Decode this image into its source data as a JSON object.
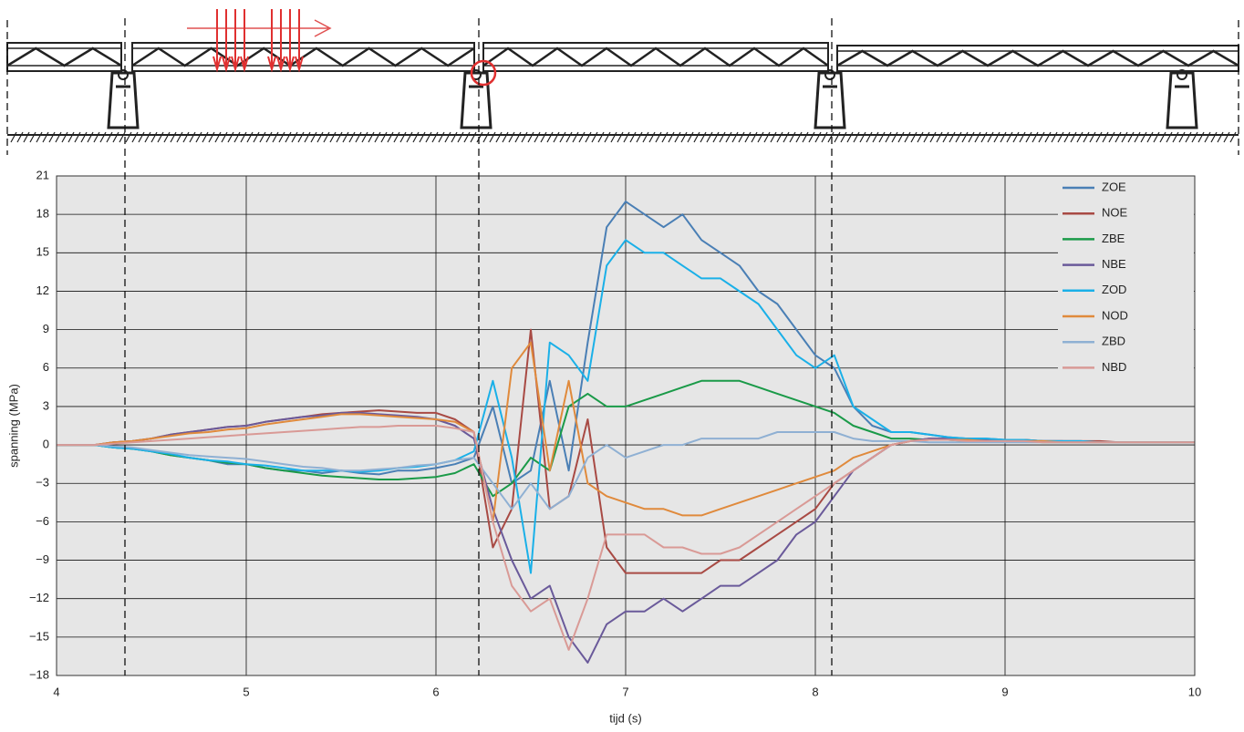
{
  "chart_data": {
    "type": "line",
    "x_label": "tijd (s)",
    "y_label": "spanning (MPa)",
    "x": [
      4,
      4.1,
      4.2,
      4.3,
      4.4,
      4.5,
      4.6,
      4.7,
      4.8,
      4.9,
      5,
      5.1,
      5.2,
      5.3,
      5.4,
      5.5,
      5.6,
      5.7,
      5.8,
      5.9,
      6,
      6.1,
      6.2,
      6.3,
      6.4,
      6.5,
      6.6,
      6.7,
      6.8,
      6.9,
      7,
      7.1,
      7.2,
      7.3,
      7.4,
      7.5,
      7.6,
      7.7,
      7.8,
      7.9,
      8,
      8.1,
      8.2,
      8.3,
      8.4,
      8.5,
      8.6,
      8.7,
      8.8,
      8.9,
      9,
      9.1,
      9.2,
      9.3,
      9.4,
      9.5,
      9.6,
      9.7,
      9.8,
      9.9,
      10
    ],
    "xlim": [
      4,
      10
    ],
    "xticks": [
      4,
      5,
      6,
      7,
      8,
      9,
      10
    ],
    "ylim": [
      -18,
      21
    ],
    "yticks": [
      {
        "value": -18,
        "label": "−18"
      },
      {
        "value": -15,
        "label": "−15"
      },
      {
        "value": -12,
        "label": "−12"
      },
      {
        "value": -9,
        "label": "−9"
      },
      {
        "value": -6,
        "label": "−6"
      },
      {
        "value": -3,
        "label": "−3"
      },
      0,
      3,
      6,
      9,
      12,
      15,
      18,
      21
    ],
    "grid": true,
    "legend": "upper right",
    "series": [
      {
        "name": "ZOE",
        "color": "#4a7fb5",
        "values": [
          0,
          0,
          0,
          -0.2,
          -0.3,
          -0.5,
          -0.8,
          -1,
          -1.2,
          -1.5,
          -1.5,
          -1.8,
          -2,
          -2,
          -2.2,
          -2,
          -2.2,
          -2.3,
          -2,
          -2,
          -1.8,
          -1.5,
          -1,
          3,
          -3,
          -2,
          5,
          -2,
          8,
          17,
          19,
          18,
          17,
          18,
          16,
          15,
          14,
          12,
          11,
          9,
          7,
          6,
          3,
          1.5,
          1,
          1,
          0.8,
          0.6,
          0.5,
          0.5,
          0.4,
          0.4,
          0.3,
          0.3,
          0.3,
          0.2,
          0.2,
          0.2,
          0.2,
          0.2,
          0.2
        ]
      },
      {
        "name": "NOE",
        "color": "#a84a44",
        "values": [
          0,
          0,
          0,
          0.2,
          0.3,
          0.5,
          0.8,
          1,
          1.2,
          1.4,
          1.5,
          1.8,
          2,
          2.2,
          2.4,
          2.5,
          2.6,
          2.7,
          2.6,
          2.5,
          2.5,
          2,
          1,
          -8,
          -5,
          9,
          -5,
          -4,
          2,
          -8,
          -10,
          -10,
          -10,
          -10,
          -10,
          -9,
          -9,
          -8,
          -7,
          -6,
          -5,
          -3,
          -2,
          -1,
          0,
          0.3,
          0.5,
          0.5,
          0.5,
          0.4,
          0.4,
          0.4,
          0.3,
          0.3,
          0.3,
          0.3,
          0.2,
          0.2,
          0.2,
          0.2,
          0.2
        ]
      },
      {
        "name": "ZBE",
        "color": "#1a9a48",
        "values": [
          0,
          0,
          0,
          -0.2,
          -0.3,
          -0.5,
          -0.8,
          -1,
          -1.2,
          -1.4,
          -1.5,
          -1.8,
          -2,
          -2.2,
          -2.4,
          -2.5,
          -2.6,
          -2.7,
          -2.7,
          -2.6,
          -2.5,
          -2.2,
          -1.5,
          -4,
          -3,
          -1,
          -2,
          3,
          4,
          3,
          3,
          3.5,
          4,
          4.5,
          5,
          5,
          5,
          4.5,
          4,
          3.5,
          3,
          2.5,
          1.5,
          1,
          0.5,
          0.5,
          0.4,
          0.4,
          0.3,
          0.3,
          0.3,
          0.3,
          0.2,
          0.2,
          0.2,
          0.2,
          0.2,
          0.2,
          0.2,
          0.2,
          0.2
        ]
      },
      {
        "name": "NBE",
        "color": "#6a5a9a",
        "values": [
          0,
          0,
          0,
          0.2,
          0.3,
          0.5,
          0.8,
          1,
          1.2,
          1.4,
          1.5,
          1.8,
          2,
          2.2,
          2.3,
          2.5,
          2.5,
          2.4,
          2.3,
          2.2,
          2,
          1.5,
          0.5,
          -5,
          -9,
          -12,
          -11,
          -15,
          -17,
          -14,
          -13,
          -13,
          -12,
          -13,
          -12,
          -11,
          -11,
          -10,
          -9,
          -7,
          -6,
          -4,
          -2,
          -1,
          0,
          0.3,
          0.5,
          0.5,
          0.4,
          0.4,
          0.3,
          0.3,
          0.3,
          0.3,
          0.2,
          0.2,
          0.2,
          0.2,
          0.2,
          0.2,
          0.2
        ]
      },
      {
        "name": "ZOD",
        "color": "#1ab0e8",
        "values": [
          0,
          0,
          0,
          -0.2,
          -0.3,
          -0.5,
          -0.7,
          -1,
          -1.2,
          -1.3,
          -1.5,
          -1.6,
          -1.8,
          -2,
          -2,
          -2,
          -2.1,
          -2,
          -1.8,
          -1.7,
          -1.5,
          -1.2,
          -0.5,
          5,
          -1,
          -10,
          8,
          7,
          5,
          14,
          16,
          15,
          15,
          14,
          13,
          13,
          12,
          11,
          9,
          7,
          6,
          7,
          3,
          2,
          1,
          1,
          0.8,
          0.6,
          0.5,
          0.5,
          0.4,
          0.4,
          0.3,
          0.3,
          0.3,
          0.2,
          0.2,
          0.2,
          0.2,
          0.2,
          0.2
        ]
      },
      {
        "name": "NOD",
        "color": "#e08a3c",
        "values": [
          0,
          0,
          0,
          0.2,
          0.3,
          0.5,
          0.7,
          0.9,
          1,
          1.2,
          1.3,
          1.6,
          1.8,
          2,
          2.2,
          2.4,
          2.4,
          2.3,
          2.2,
          2.1,
          2,
          1.8,
          1,
          -6,
          6,
          8,
          -2,
          5,
          -3,
          -4,
          -4.5,
          -5,
          -5,
          -5.5,
          -5.5,
          -5,
          -4.5,
          -4,
          -3.5,
          -3,
          -2.5,
          -2,
          -1,
          -0.5,
          0,
          0.3,
          0.4,
          0.4,
          0.4,
          0.3,
          0.3,
          0.3,
          0.3,
          0.2,
          0.2,
          0.2,
          0.2,
          0.2,
          0.2,
          0.2,
          0.2
        ]
      },
      {
        "name": "ZBD",
        "color": "#8fb0d3",
        "values": [
          0,
          0,
          0,
          -0.1,
          -0.2,
          -0.4,
          -0.6,
          -0.8,
          -0.9,
          -1,
          -1.1,
          -1.3,
          -1.5,
          -1.7,
          -1.8,
          -2,
          -2,
          -1.9,
          -1.8,
          -1.6,
          -1.5,
          -1.2,
          -1,
          -3,
          -5,
          -3,
          -5,
          -4,
          -1,
          0,
          -1,
          -0.5,
          0,
          0,
          0.5,
          0.5,
          0.5,
          0.5,
          1,
          1,
          1,
          1,
          0.5,
          0.3,
          0.3,
          0.3,
          0.2,
          0.2,
          0.2,
          0.2,
          0.2,
          0.2,
          0.2,
          0.2,
          0.2,
          0.2,
          0.2,
          0.2,
          0.2,
          0.2,
          0.2
        ]
      },
      {
        "name": "NBD",
        "color": "#d99a96",
        "values": [
          0,
          0,
          0,
          0.1,
          0.2,
          0.3,
          0.4,
          0.5,
          0.6,
          0.7,
          0.8,
          0.9,
          1,
          1.1,
          1.2,
          1.3,
          1.4,
          1.4,
          1.5,
          1.5,
          1.5,
          1.3,
          1,
          -6,
          -11,
          -13,
          -12,
          -16,
          -12,
          -7,
          -7,
          -7,
          -8,
          -8,
          -8.5,
          -8.5,
          -8,
          -7,
          -6,
          -5,
          -4,
          -3,
          -2,
          -1,
          0,
          0.3,
          0.4,
          0.4,
          0.3,
          0.3,
          0.3,
          0.3,
          0.2,
          0.2,
          0.2,
          0.2,
          0.2,
          0.2,
          0.2,
          0.2,
          0.2
        ]
      }
    ]
  }
}
